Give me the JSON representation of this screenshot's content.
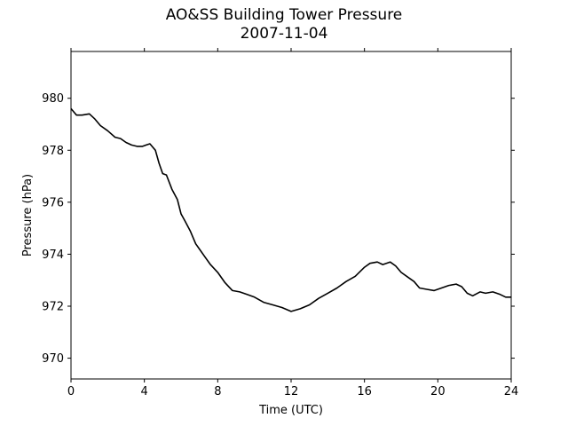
{
  "chart_data": {
    "type": "line",
    "title": "AO&SS Building Tower Pressure",
    "subtitle": "2007-11-04",
    "xlabel": "Time (UTC)",
    "ylabel": "Pressure (hPa)",
    "xlim": [
      0,
      24
    ],
    "ylim": [
      969.2,
      981.8
    ],
    "xticks": [
      0,
      4,
      8,
      12,
      16,
      20,
      24
    ],
    "yticks": [
      970,
      972,
      974,
      976,
      978,
      980
    ],
    "grid": false,
    "line_color": "#000000",
    "series": [
      {
        "x": [
          0,
          0.3,
          0.6,
          1.0,
          1.3,
          1.6,
          2.0,
          2.4,
          2.7,
          3.0,
          3.3,
          3.6,
          3.9,
          4.1,
          4.3,
          4.6,
          4.8,
          5.0,
          5.2,
          5.5,
          5.8,
          6.0,
          6.2,
          6.5,
          6.8,
          7.0,
          7.3,
          7.6,
          8.0,
          8.4,
          8.8,
          9.2,
          9.6,
          10.0,
          10.5,
          11.0,
          11.5,
          12.0,
          12.5,
          13.0,
          13.5,
          14.0,
          14.5,
          15.0,
          15.5,
          16.0,
          16.3,
          16.7,
          17.0,
          17.4,
          17.7,
          18.0,
          18.4,
          18.7,
          19.0,
          19.4,
          19.8,
          20.2,
          20.6,
          21.0,
          21.3,
          21.6,
          21.9,
          22.3,
          22.6,
          23.0,
          23.4,
          23.7,
          24.0
        ],
        "y": [
          979.6,
          979.35,
          979.35,
          979.4,
          979.2,
          978.95,
          978.75,
          978.5,
          978.45,
          978.3,
          978.2,
          978.15,
          978.15,
          978.2,
          978.25,
          978.0,
          977.5,
          977.1,
          977.05,
          976.5,
          976.1,
          975.55,
          975.3,
          974.9,
          974.4,
          974.2,
          973.9,
          973.6,
          973.3,
          972.9,
          972.6,
          972.55,
          972.45,
          972.35,
          972.15,
          972.05,
          971.95,
          971.8,
          971.9,
          972.05,
          972.3,
          972.5,
          972.7,
          972.95,
          973.15,
          973.5,
          973.65,
          973.7,
          973.6,
          973.7,
          973.55,
          973.3,
          973.1,
          972.95,
          972.7,
          972.65,
          972.6,
          972.7,
          972.8,
          972.85,
          972.75,
          972.5,
          972.4,
          972.55,
          972.5,
          972.55,
          972.45,
          972.35,
          972.35
        ]
      }
    ]
  }
}
